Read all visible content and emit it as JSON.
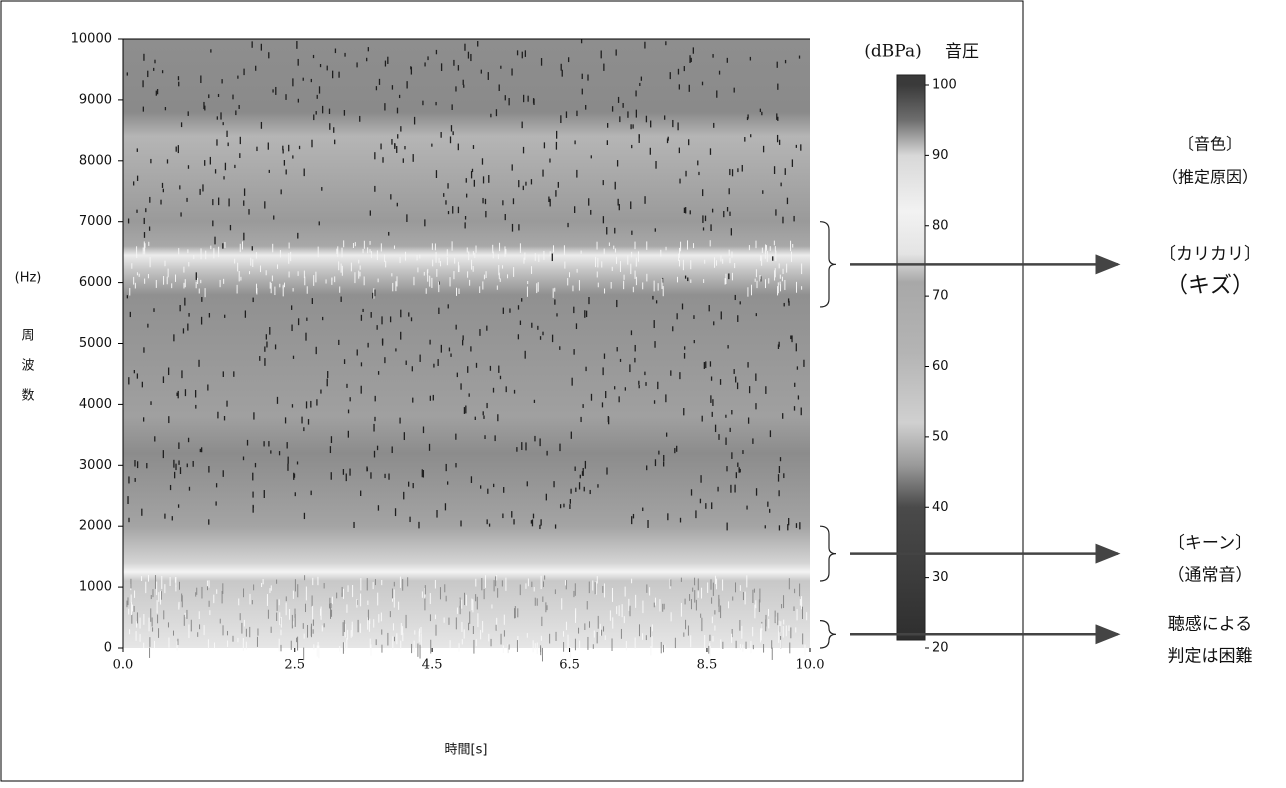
{
  "chart_data": {
    "type": "spectrogram",
    "xlabel": "時間[s]",
    "ylabel_unit": "(Hz)",
    "ylabel_chars": [
      "周",
      "波",
      "数"
    ],
    "xlim": [
      0,
      10
    ],
    "xticks": [
      {
        "value": 0,
        "label": "0.0"
      },
      2.5,
      4.5,
      6.5,
      8.5,
      {
        "value": 10,
        "label": "10.0"
      }
    ],
    "ylim": [
      0,
      10000
    ],
    "yticks": [
      0,
      1000,
      2000,
      3000,
      4000,
      5000,
      6000,
      7000,
      8000,
      9000,
      10000
    ],
    "colorbar": {
      "unit": "(dBPa)",
      "label": "音圧",
      "lim": [
        20,
        100
      ],
      "ticks": [
        20,
        30,
        40,
        50,
        60,
        70,
        80,
        90,
        100
      ],
      "colormap": [
        {
          "value": 100,
          "color": "#3a3a3a"
        },
        {
          "value": 95,
          "color": "#6e6e6e"
        },
        {
          "value": 90,
          "color": "#d8d8d8"
        },
        {
          "value": 82,
          "color": "#f2f2f2"
        },
        {
          "value": 76,
          "color": "#e4e4e4"
        },
        {
          "value": 72,
          "color": "#a8a8a8"
        },
        {
          "value": 62,
          "color": "#b4b4b4"
        },
        {
          "value": 52,
          "color": "#d0d0d0"
        },
        {
          "value": 46,
          "color": "#9a9a9a"
        },
        {
          "value": 40,
          "color": "#4a4a4a"
        },
        {
          "value": 30,
          "color": "#3c3c3c"
        },
        {
          "value": 20,
          "color": "#2e2e2e"
        }
      ]
    },
    "annotation_header": [
      "〔音色〕",
      "（推定原因）"
    ],
    "annotations": [
      {
        "range": [
          5600,
          7000
        ],
        "lines": [
          "〔カリカリ〕",
          "（キズ）"
        ]
      },
      {
        "range": [
          1100,
          2000
        ],
        "lines": [
          "〔キーン〕",
          "（通常音）"
        ]
      },
      {
        "range": [
          0,
          450
        ],
        "lines": [
          "聴感による",
          "判定は困難"
        ]
      }
    ]
  }
}
